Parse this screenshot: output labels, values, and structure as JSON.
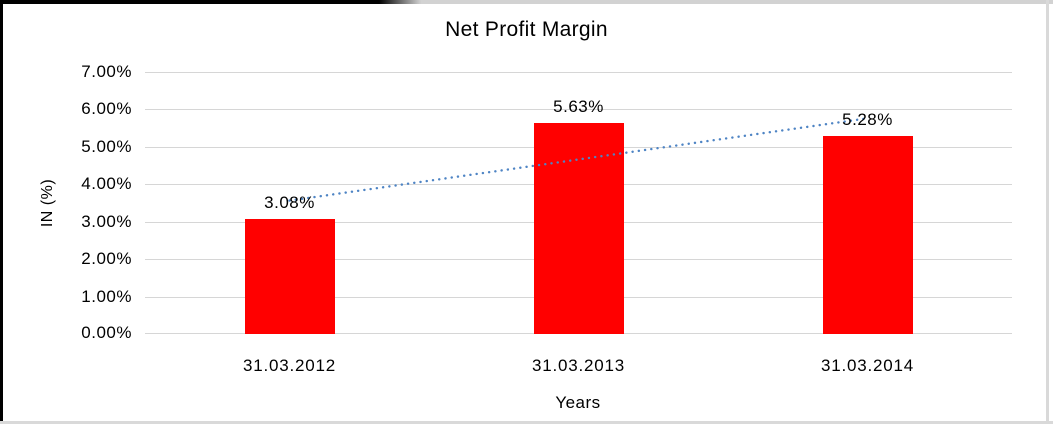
{
  "chart_data": {
    "type": "bar",
    "title": "Net Profit Margin",
    "categories": [
      "31.03.2012",
      "31.03.2013",
      "31.03.2014"
    ],
    "values": [
      3.08,
      5.63,
      5.28
    ],
    "data_labels": [
      "3.08%",
      "5.63%",
      "5.28%"
    ],
    "xlabel": "Years",
    "ylabel": "IN (%)",
    "ylim": [
      0,
      7
    ],
    "ytick_step": 1,
    "yticks_top_to_bottom": [
      "7.00%",
      "6.00%",
      "5.00%",
      "4.00%",
      "3.00%",
      "2.00%",
      "1.00%",
      "0.00%"
    ],
    "grid": true,
    "legend": "none",
    "trendline": {
      "type": "linear",
      "style": "dotted"
    },
    "colors": {
      "bar": "#FF0000",
      "trendline": "#4E84C4",
      "gridline": "#D6D6D6",
      "text": "#000000",
      "background": "#FFFFFF"
    }
  }
}
